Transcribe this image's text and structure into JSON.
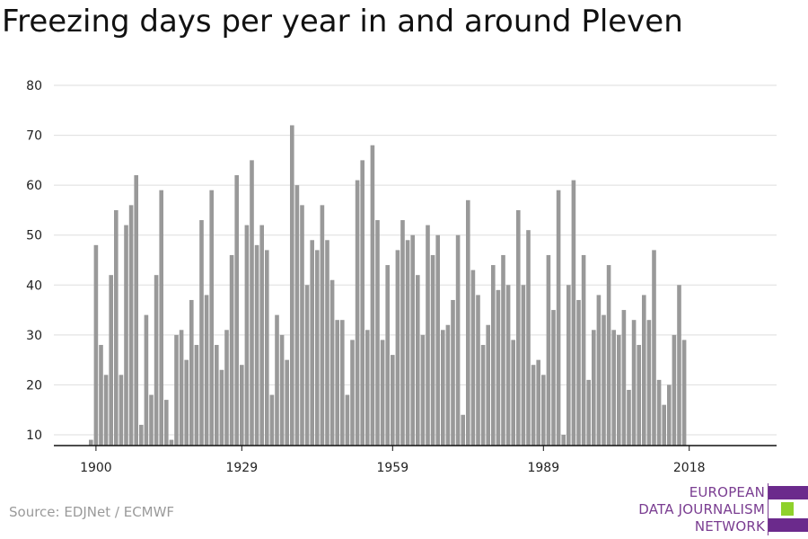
{
  "title": "Freezing days per year in and around Pleven",
  "source": "Source: EDJNet / ECMWF",
  "logo": {
    "lines": [
      "EUROPEAN",
      "DATA JOURNALISM",
      "NETWORK"
    ],
    "colors": [
      "#6b2a8c",
      "#8fd12b",
      "#6b2a8c"
    ]
  },
  "chart_data": {
    "type": "bar",
    "title": "",
    "xlabel": "",
    "ylabel": "",
    "bar_color": "#999999",
    "x_start": 1899,
    "xticks": [
      1900,
      1929,
      1959,
      1989,
      2018
    ],
    "yticks": [
      10,
      20,
      30,
      40,
      50,
      60,
      70,
      80
    ],
    "ylim": [
      7,
      80
    ],
    "grid": true,
    "values": [
      9,
      48,
      28,
      22,
      42,
      55,
      22,
      52,
      56,
      62,
      12,
      34,
      18,
      42,
      59,
      17,
      9,
      30,
      31,
      25,
      37,
      28,
      53,
      38,
      59,
      28,
      23,
      31,
      46,
      62,
      24,
      52,
      65,
      48,
      52,
      47,
      18,
      34,
      30,
      25,
      72,
      60,
      56,
      40,
      49,
      47,
      56,
      49,
      41,
      33,
      33,
      18,
      29,
      61,
      65,
      31,
      68,
      53,
      29,
      44,
      26,
      47,
      53,
      49,
      50,
      42,
      30,
      52,
      46,
      50,
      31,
      32,
      37,
      50,
      14,
      57,
      43,
      38,
      28,
      32,
      44,
      39,
      46,
      40,
      29,
      55,
      40,
      51,
      24,
      25,
      22,
      46,
      35,
      59,
      10,
      40,
      61,
      37,
      46,
      21,
      31,
      38,
      34,
      44,
      31,
      30,
      35,
      19,
      33,
      28,
      38,
      33,
      47,
      21,
      16,
      20,
      30,
      40,
      29
    ]
  }
}
